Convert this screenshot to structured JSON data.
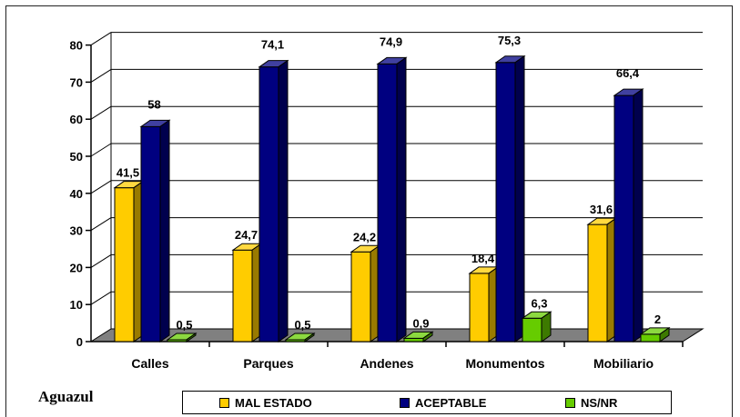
{
  "chart_data": {
    "type": "bar",
    "categories": [
      "Calles",
      "Parques",
      "Andenes",
      "Monumentos",
      "Mobiliario"
    ],
    "series": [
      {
        "name": "MAL ESTADO",
        "color": "#FFCC00",
        "values": [
          41.5,
          24.7,
          24.2,
          18.4,
          31.6
        ],
        "labels": [
          "41,5",
          "24,7",
          "24,2",
          "18,4",
          "31,6"
        ]
      },
      {
        "name": "ACEPTABLE",
        "color": "#000080",
        "values": [
          58,
          74.1,
          74.9,
          75.3,
          66.4
        ],
        "labels": [
          "58",
          "74,1",
          "74,9",
          "75,3",
          "66,4"
        ]
      },
      {
        "name": "NS/NR",
        "color": "#66CC00",
        "values": [
          0.5,
          0.5,
          0.9,
          6.3,
          2
        ],
        "labels": [
          "0,5",
          "0,5",
          "0,9",
          "6,3",
          "2"
        ]
      }
    ],
    "y_ticks": [
      "0",
      "10",
      "20",
      "30",
      "40",
      "50",
      "60",
      "70",
      "80"
    ],
    "ylim": [
      0,
      80
    ],
    "grid": true,
    "legend_position": "bottom",
    "style": "3d-clustered-bar"
  },
  "place_label": "Aguazul"
}
